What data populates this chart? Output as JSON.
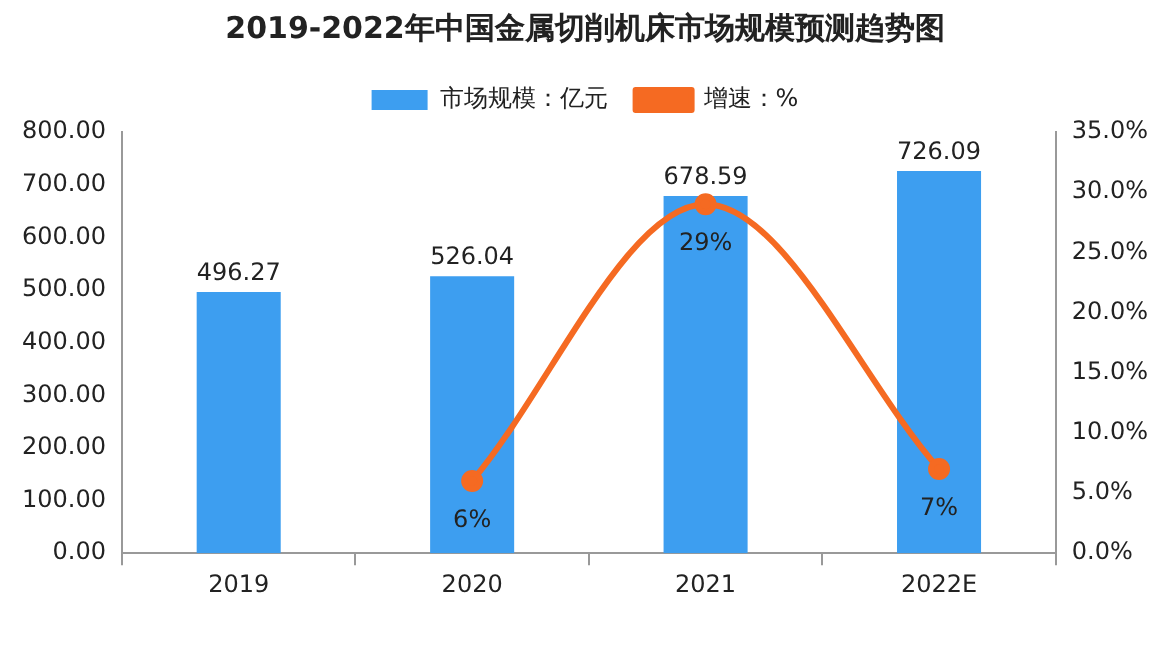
{
  "chart_data": {
    "type": "bar",
    "title": "2019-2022年中国金属切削机床市场规模预测趋势图",
    "categories": [
      "2019",
      "2020",
      "2021",
      "2022E"
    ],
    "series": [
      {
        "name": "市场规模：亿元",
        "color": "#3d9ef0",
        "values": [
          496.27,
          526.04,
          678.59,
          726.09
        ],
        "value_labels": [
          "496.27",
          "526.04",
          "678.59",
          "726.09"
        ]
      },
      {
        "name": "增速：%",
        "type": "line",
        "axis": "y2",
        "color": "#f56a22",
        "values": [
          null,
          6,
          29,
          7
        ],
        "value_labels": [
          null,
          "6%",
          "29%",
          "7%"
        ]
      }
    ],
    "ylim": [
      0,
      800
    ],
    "yticks": [
      {
        "value": 0,
        "label": "0.00"
      },
      {
        "value": 100,
        "label": "100.00"
      },
      {
        "value": 200,
        "label": "200.00"
      },
      {
        "value": 300,
        "label": "300.00"
      },
      {
        "value": 400,
        "label": "400.00"
      },
      {
        "value": 500,
        "label": "500.00"
      },
      {
        "value": 600,
        "label": "600.00"
      },
      {
        "value": 700,
        "label": "700.00"
      },
      {
        "value": 800,
        "label": "800.00"
      }
    ],
    "y2lim": [
      0,
      35
    ],
    "y2ticks": [
      {
        "value": 0,
        "label": "0.0%"
      },
      {
        "value": 5,
        "label": "5.0%"
      },
      {
        "value": 10,
        "label": "10.0%"
      },
      {
        "value": 15,
        "label": "15.0%"
      },
      {
        "value": 20,
        "label": "20.0%"
      },
      {
        "value": 25,
        "label": "25.0%"
      },
      {
        "value": 30,
        "label": "30.0%"
      },
      {
        "value": 35,
        "label": "35.0%"
      }
    ],
    "legend": "top",
    "grid": false,
    "marker": "circle"
  }
}
